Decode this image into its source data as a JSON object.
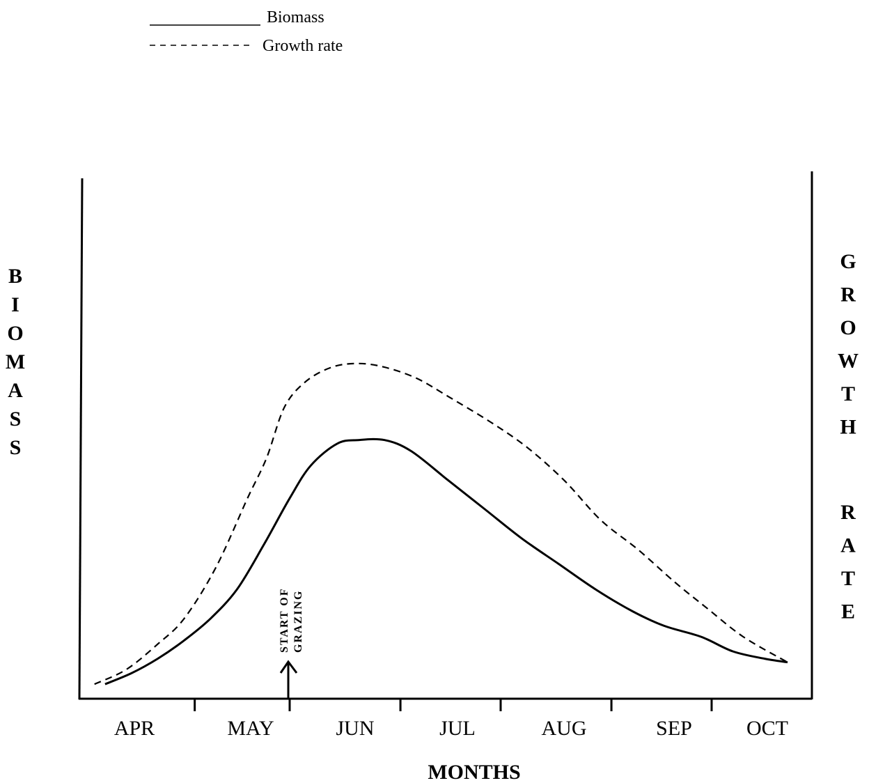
{
  "chart_data": {
    "type": "line",
    "title": "",
    "xlabel": "MONTHS",
    "ylabel_left": "BIOMASS",
    "ylabel_right": "GROWTH RATE",
    "categories": [
      "APR",
      "MAY",
      "JUN",
      "JUL",
      "AUG",
      "SEP",
      "OCT"
    ],
    "xlim": [
      0,
      7
    ],
    "ylim": [
      0,
      100
    ],
    "legend": {
      "position": "top-left",
      "entries": [
        {
          "label": "Biomass",
          "style": "solid"
        },
        {
          "label": "Growth rate",
          "style": "dashed"
        }
      ]
    },
    "annotation": {
      "text_line1": "START OF",
      "text_line2": "GRAZING",
      "x": 1.8
    },
    "grid": false,
    "series": [
      {
        "name": "Biomass",
        "style": "solid",
        "x": [
          0.25,
          0.5,
          0.75,
          1.0,
          1.25,
          1.5,
          1.75,
          2.0,
          2.2,
          2.45,
          2.65,
          2.9,
          3.15,
          3.5,
          3.85,
          4.2,
          4.55,
          4.9,
          5.25,
          5.55,
          5.9,
          6.2,
          6.5,
          6.72
        ],
        "y": [
          4,
          7,
          11,
          16,
          22,
          30,
          42,
          55,
          64,
          70,
          71,
          71,
          68,
          60,
          52,
          44,
          37,
          30,
          24,
          20,
          17,
          13,
          11,
          10
        ]
      },
      {
        "name": "Growth rate",
        "style": "dashed",
        "x": [
          0.15,
          0.45,
          0.75,
          1.0,
          1.3,
          1.6,
          1.78,
          1.95,
          2.15,
          2.4,
          2.65,
          2.9,
          3.2,
          3.5,
          3.9,
          4.25,
          4.6,
          4.95,
          5.3,
          5.65,
          5.95,
          6.3,
          6.72
        ],
        "y": [
          4,
          8,
          15,
          22,
          36,
          55,
          66,
          80,
          87,
          91,
          92,
          91,
          88,
          83,
          76,
          69,
          60,
          49,
          41,
          32,
          25,
          17,
          10
        ]
      }
    ]
  }
}
